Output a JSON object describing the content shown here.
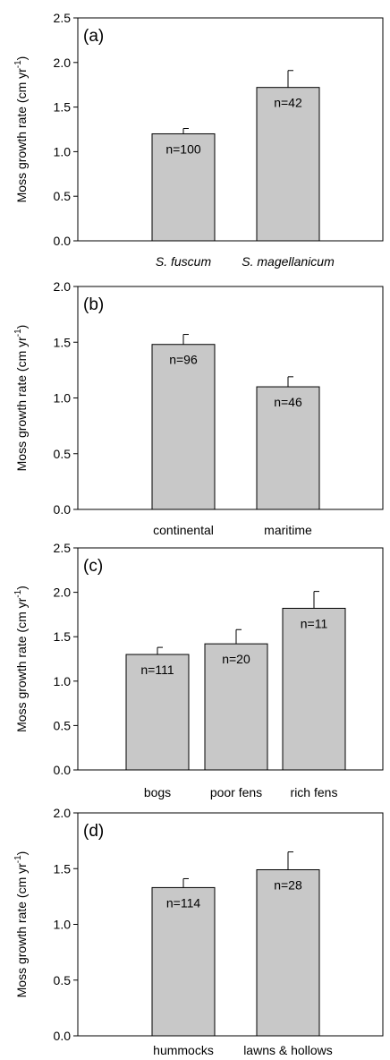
{
  "colors": {
    "bar_fill": "#c8c8c8",
    "axis": "#000000",
    "background": "#ffffff"
  },
  "chart_data": [
    {
      "type": "bar",
      "panel_label": "(a)",
      "ylabel_main": "Moss growth rate (cm yr",
      "ylabel_sup": "-1",
      "ylabel_close": ")",
      "ylim": [
        0,
        2.5
      ],
      "yticks": [
        "0.0",
        "0.5",
        "1.0",
        "1.5",
        "2.0",
        "2.5"
      ],
      "categories": [
        "S. fuscum",
        "S. magellanicum"
      ],
      "italic_categories": true,
      "values": [
        1.2,
        1.72
      ],
      "errors": [
        0.06,
        0.19
      ],
      "n_labels": [
        "n=100",
        "n=42"
      ]
    },
    {
      "type": "bar",
      "panel_label": "(b)",
      "ylabel_main": "Moss growth rate (cm yr",
      "ylabel_sup": "-1",
      "ylabel_close": ")",
      "ylim": [
        0,
        2.0
      ],
      "yticks": [
        "0.0",
        "0.5",
        "1.0",
        "1.5",
        "2.0"
      ],
      "categories": [
        "continental",
        "maritime"
      ],
      "italic_categories": false,
      "values": [
        1.48,
        1.1
      ],
      "errors": [
        0.09,
        0.09
      ],
      "n_labels": [
        "n=96",
        "n=46"
      ]
    },
    {
      "type": "bar",
      "panel_label": "(c)",
      "ylabel_main": "Moss growth rate (cm yr",
      "ylabel_sup": "-1",
      "ylabel_close": ")",
      "ylim": [
        0,
        2.5
      ],
      "yticks": [
        "0.0",
        "0.5",
        "1.0",
        "1.5",
        "2.0",
        "2.5"
      ],
      "categories": [
        "bogs",
        "poor fens",
        "rich fens"
      ],
      "italic_categories": false,
      "values": [
        1.3,
        1.42,
        1.82
      ],
      "errors": [
        0.08,
        0.16,
        0.19
      ],
      "n_labels": [
        "n=111",
        "n=20",
        "n=11"
      ]
    },
    {
      "type": "bar",
      "panel_label": "(d)",
      "ylabel_main": "Moss growth rate (cm yr",
      "ylabel_sup": "-1",
      "ylabel_close": ")",
      "ylim": [
        0,
        2.0
      ],
      "yticks": [
        "0.0",
        "0.5",
        "1.0",
        "1.5",
        "2.0"
      ],
      "categories": [
        "hummocks",
        "lawns & hollows"
      ],
      "italic_categories": false,
      "values": [
        1.33,
        1.49
      ],
      "errors": [
        0.08,
        0.16
      ],
      "n_labels": [
        "n=114",
        "n=28"
      ]
    }
  ]
}
